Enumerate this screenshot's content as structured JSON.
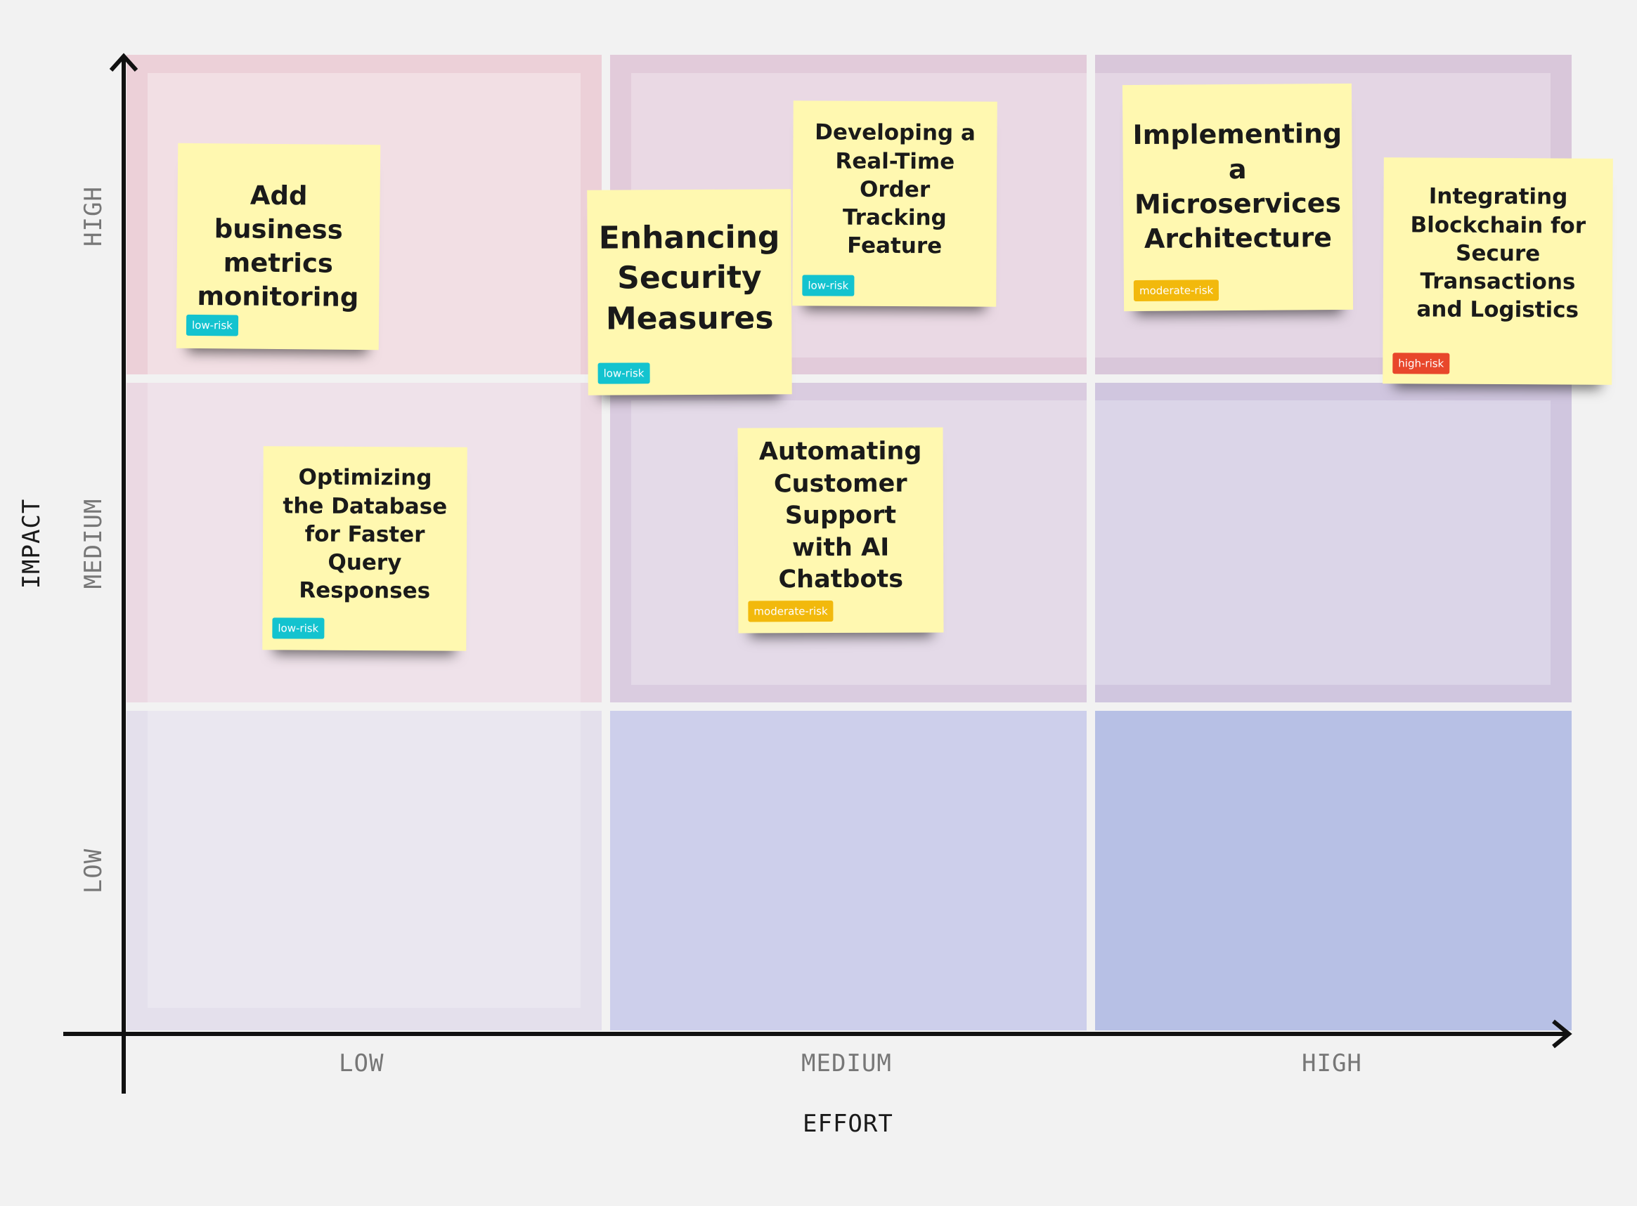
{
  "axes": {
    "x_title": "EFFORT",
    "y_title": "IMPACT",
    "x_levels": [
      "LOW",
      "MEDIUM",
      "HIGH"
    ],
    "y_levels": [
      "HIGH",
      "MEDIUM",
      "LOW"
    ]
  },
  "colors": {
    "background": "#f2f2f2",
    "note": "#fff8b0",
    "low_risk": "#13c3cf",
    "moderate_risk": "#f2b90c",
    "high_risk": "#e8472b",
    "axis": "#111111"
  },
  "notes": [
    {
      "text": "Add business metrics monitoring",
      "badge": "low-risk",
      "effort": "LOW",
      "impact": "HIGH"
    },
    {
      "text": "Enhancing Security Measures",
      "badge": "low-risk",
      "effort": "MEDIUM",
      "impact": "HIGH"
    },
    {
      "text": "Developing a Real-Time Order Tracking Feature",
      "badge": "low-risk",
      "effort": "MEDIUM",
      "impact": "HIGH"
    },
    {
      "text": "Implementing a Microservices Architecture",
      "badge": "moderate-risk",
      "effort": "HIGH",
      "impact": "HIGH"
    },
    {
      "text": "Integrating Blockchain for Secure Transactions and Logistics",
      "badge": "high-risk",
      "effort": "HIGH",
      "impact": "HIGH"
    },
    {
      "text": "Optimizing the Database for Faster Query Responses",
      "badge": "low-risk",
      "effort": "LOW",
      "impact": "MEDIUM"
    },
    {
      "text": "Automating Customer Support with AI Chatbots",
      "badge": "moderate-risk",
      "effort": "MEDIUM",
      "impact": "MEDIUM"
    }
  ]
}
